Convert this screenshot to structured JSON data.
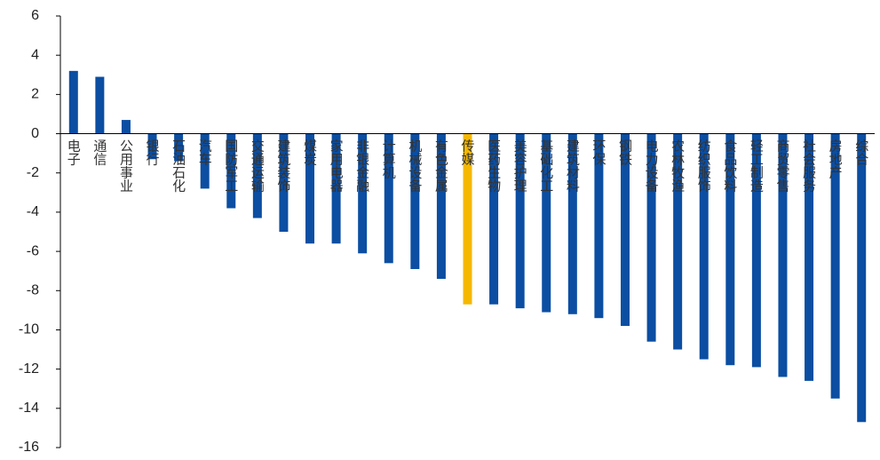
{
  "chart_data": {
    "type": "bar",
    "categories": [
      "电子",
      "通信",
      "公用事业",
      "银行",
      "石油石化",
      "汽车",
      "国防军工",
      "交通运输",
      "建筑装饰",
      "煤炭",
      "家用电器",
      "非银金融",
      "计算机",
      "机械设备",
      "有色金属",
      "传媒",
      "医药生物",
      "美容护理",
      "基础化工",
      "建筑材料",
      "环保",
      "钢铁",
      "电力设备",
      "农林牧渔",
      "纺织服饰",
      "食品饮料",
      "轻工制造",
      "商贸零售",
      "社会服务",
      "房地产",
      "综合"
    ],
    "values": [
      3.2,
      2.9,
      0.7,
      -1.3,
      -1.4,
      -2.8,
      -3.8,
      -4.3,
      -5.0,
      -5.6,
      -5.6,
      -6.1,
      -6.6,
      -6.9,
      -7.4,
      -8.7,
      -8.7,
      -8.9,
      -9.1,
      -9.2,
      -9.4,
      -9.8,
      -10.6,
      -11.0,
      -11.5,
      -11.8,
      -11.9,
      -12.4,
      -12.6,
      -13.5,
      -14.7
    ],
    "colors": [
      "#0b4ea2",
      "#0b4ea2",
      "#0b4ea2",
      "#0b4ea2",
      "#0b4ea2",
      "#0b4ea2",
      "#0b4ea2",
      "#0b4ea2",
      "#0b4ea2",
      "#0b4ea2",
      "#0b4ea2",
      "#0b4ea2",
      "#0b4ea2",
      "#0b4ea2",
      "#0b4ea2",
      "#f5b800",
      "#0b4ea2",
      "#0b4ea2",
      "#0b4ea2",
      "#0b4ea2",
      "#0b4ea2",
      "#0b4ea2",
      "#0b4ea2",
      "#0b4ea2",
      "#0b4ea2",
      "#0b4ea2",
      "#0b4ea2",
      "#0b4ea2",
      "#0b4ea2",
      "#0b4ea2",
      "#0b4ea2"
    ],
    "ylim": [
      -16,
      6
    ],
    "yticks": [
      -16,
      -14,
      -12,
      -10,
      -8,
      -6,
      -4,
      -2,
      0,
      2,
      4,
      6
    ],
    "grid": false
  }
}
